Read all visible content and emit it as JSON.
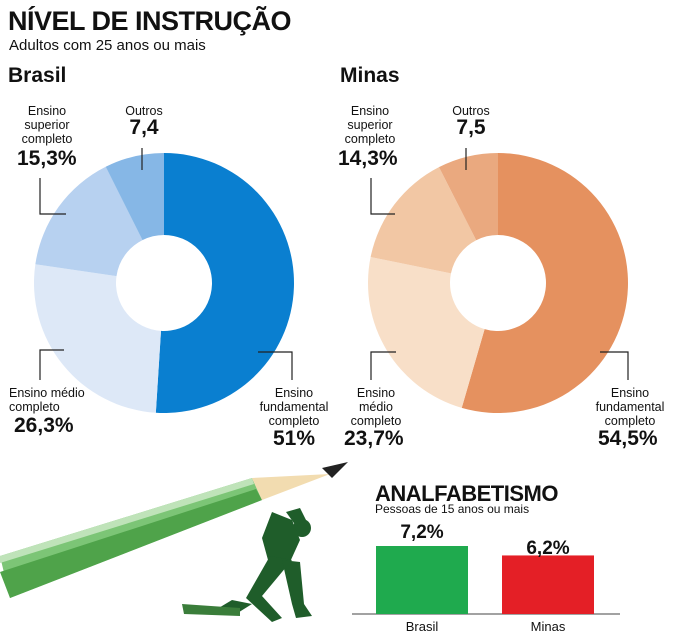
{
  "title": "NÍVEL DE INSTRUÇÃO",
  "subtitle": "Adultos com 25 anos ou mais",
  "chart_data": [
    {
      "type": "pie",
      "title": "Brasil",
      "categories": [
        "Ensino fundamental completo",
        "Ensino médio completo",
        "Ensino superior completo",
        "Outros"
      ],
      "values": [
        51,
        26.3,
        15.3,
        7.4
      ],
      "value_labels": [
        "51%",
        "26,3%",
        "15,3%",
        "7,4"
      ],
      "colors": [
        "#0a7fd0",
        "#dde8f7",
        "#b7d1f0",
        "#86b7e6"
      ]
    },
    {
      "type": "pie",
      "title": "Minas",
      "categories": [
        "Ensino fundamental completo",
        "Ensino médio completo",
        "Ensino superior completo",
        "Outros"
      ],
      "values": [
        54.5,
        23.7,
        14.3,
        7.5
      ],
      "value_labels": [
        "54,5%",
        "23,7%",
        "14,3%",
        "7,5"
      ],
      "colors": [
        "#e5915f",
        "#f8dfc8",
        "#f2c7a4",
        "#eaa97f"
      ]
    },
    {
      "type": "bar",
      "title": "ANALFABETISMO",
      "subtitle": "Pessoas de 15 anos ou mais",
      "categories": [
        "Brasil",
        "Minas"
      ],
      "values": [
        7.2,
        6.2
      ],
      "value_labels": [
        "7,2%",
        "6,2%"
      ],
      "colors": [
        "#1faa4e",
        "#e41f26"
      ]
    }
  ],
  "labels": {
    "brasil": {
      "fundamental": [
        "Ensino",
        "fundamental",
        "completo"
      ],
      "medio": [
        "Ensino médio",
        "completo"
      ],
      "superior": [
        "Ensino",
        "superior",
        "completo"
      ],
      "outros": [
        "Outros"
      ]
    },
    "minas": {
      "fundamental": [
        "Ensino",
        "fundamental",
        "completo"
      ],
      "medio": [
        "Ensino",
        "médio",
        "completo"
      ],
      "superior": [
        "Ensino",
        "superior",
        "completo"
      ],
      "outros": [
        "Outros"
      ]
    }
  }
}
